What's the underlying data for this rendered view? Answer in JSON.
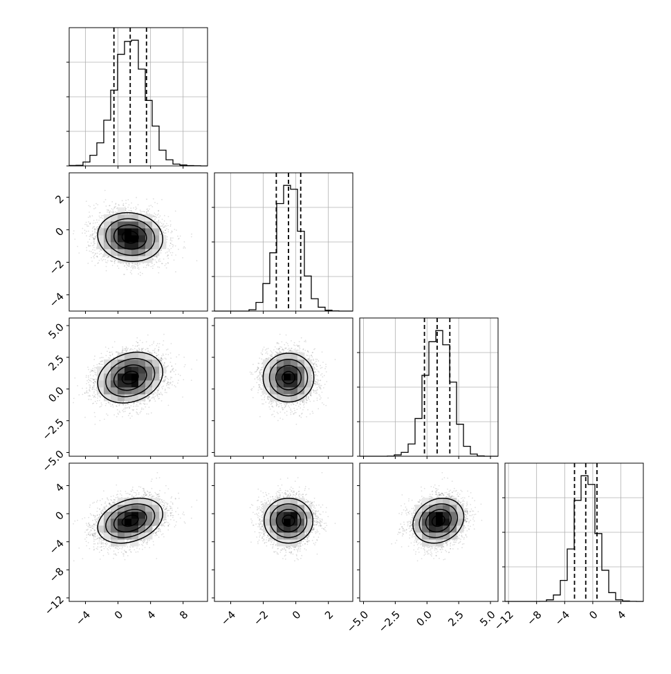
{
  "chart_data": {
    "type": "corner",
    "title": "",
    "n_params": 4,
    "hist_bins": 20,
    "grid": true,
    "params": [
      {
        "mean": 1.5,
        "sd": 2.0,
        "range": [
          -6,
          11
        ],
        "ticks": [
          -4,
          0,
          4,
          8
        ],
        "tick_labels": [
          "−4",
          "0",
          "4",
          "8"
        ],
        "quantiles": [
          -0.5,
          1.5,
          3.5
        ]
      },
      {
        "mean": -0.45,
        "sd": 0.75,
        "range": [
          -5,
          3.5
        ],
        "ticks": [
          -4,
          -2,
          0,
          2
        ],
        "tick_labels": [
          "−4",
          "−2",
          "0",
          "2"
        ],
        "quantiles": [
          -1.2,
          -0.45,
          0.3
        ]
      },
      {
        "mean": 0.9,
        "sd": 1.0,
        "range": [
          -5.3,
          5.6
        ],
        "ticks": [
          -5,
          -2.5,
          0,
          2.5,
          5
        ],
        "tick_labels": [
          "−5.0",
          "−2.5",
          "0.0",
          "2.5",
          "5.0"
        ],
        "quantiles": [
          -0.2,
          0.8,
          1.8
        ]
      },
      {
        "mean": -1.0,
        "sd": 1.6,
        "range": [
          -12.5,
          7.2
        ],
        "ticks": [
          -12,
          -8,
          -4,
          0,
          4
        ],
        "tick_labels": [
          "−12",
          "−8",
          "−4",
          "0",
          "4"
        ],
        "quantiles": [
          -2.6,
          -1.0,
          0.6
        ]
      }
    ],
    "correlations": [
      {
        "i": 1,
        "j": 0,
        "rho": -0.08
      },
      {
        "i": 2,
        "j": 0,
        "rho": 0.22
      },
      {
        "i": 2,
        "j": 1,
        "rho": 0.0
      },
      {
        "i": 3,
        "j": 0,
        "rho": 0.3
      },
      {
        "i": 3,
        "j": 1,
        "rho": 0.0
      },
      {
        "i": 3,
        "j": 2,
        "rho": 0.18
      }
    ],
    "hist_ylim_relative": [
      0,
      1.1
    ],
    "colors": {
      "line": "#000000",
      "grid": "#b0b0b0",
      "scatter": "#000000",
      "density": "#000000"
    }
  }
}
